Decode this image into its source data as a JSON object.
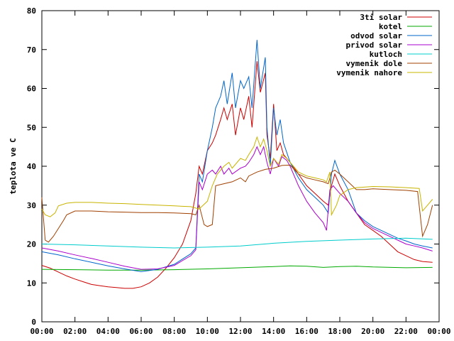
{
  "chart_data": {
    "type": "line",
    "ylabel": "teplota ve C",
    "xlabel": "",
    "ylim": [
      0,
      80
    ],
    "xlim": [
      0,
      24
    ],
    "x_ticks": [
      "00:00",
      "02:00",
      "04:00",
      "06:00",
      "08:00",
      "10:00",
      "12:00",
      "14:00",
      "16:00",
      "18:00",
      "20:00",
      "22:00",
      "00:00"
    ],
    "y_ticks": [
      0,
      10,
      20,
      30,
      40,
      50,
      60,
      70,
      80
    ],
    "legend_position": "top-right",
    "grid": false,
    "series": [
      {
        "name": "3ti solar",
        "color": "#cc0000",
        "points": [
          [
            0,
            14.5
          ],
          [
            0.5,
            13.8
          ],
          [
            1,
            12.8
          ],
          [
            1.5,
            11.8
          ],
          [
            2,
            11
          ],
          [
            2.5,
            10.3
          ],
          [
            3,
            9.6
          ],
          [
            3.5,
            9.3
          ],
          [
            4,
            9.0
          ],
          [
            4.5,
            8.8
          ],
          [
            5,
            8.6
          ],
          [
            5.5,
            8.6
          ],
          [
            6,
            9
          ],
          [
            6.5,
            10
          ],
          [
            7,
            11.5
          ],
          [
            7.5,
            13.8
          ],
          [
            8,
            16.5
          ],
          [
            8.5,
            20
          ],
          [
            9,
            26
          ],
          [
            9.3,
            33
          ],
          [
            9.5,
            40
          ],
          [
            9.7,
            38
          ],
          [
            10,
            44
          ],
          [
            10.3,
            46
          ],
          [
            10.5,
            48
          ],
          [
            10.8,
            52
          ],
          [
            11,
            55
          ],
          [
            11.2,
            52
          ],
          [
            11.5,
            56
          ],
          [
            11.7,
            48
          ],
          [
            12,
            55
          ],
          [
            12.2,
            52
          ],
          [
            12.5,
            58
          ],
          [
            12.7,
            50
          ],
          [
            13,
            67
          ],
          [
            13.2,
            59
          ],
          [
            13.5,
            64
          ],
          [
            13.6,
            48
          ],
          [
            13.8,
            42
          ],
          [
            14,
            56
          ],
          [
            14.2,
            44
          ],
          [
            14.4,
            46
          ],
          [
            14.6,
            43
          ],
          [
            15,
            41
          ],
          [
            15.5,
            38
          ],
          [
            16,
            35
          ],
          [
            16.5,
            33
          ],
          [
            17,
            31
          ],
          [
            17.3,
            30
          ],
          [
            17.5,
            35
          ],
          [
            17.7,
            38
          ],
          [
            18,
            35
          ],
          [
            18.5,
            31
          ],
          [
            19,
            28
          ],
          [
            19.5,
            25
          ],
          [
            20,
            23.5
          ],
          [
            20.5,
            22
          ],
          [
            21,
            20
          ],
          [
            21.5,
            18
          ],
          [
            22,
            17
          ],
          [
            22.5,
            16
          ],
          [
            23,
            15.5
          ],
          [
            23.6,
            15.3
          ]
        ]
      },
      {
        "name": "kotel",
        "color": "#00aa00",
        "points": [
          [
            0,
            13.5
          ],
          [
            2,
            13.4
          ],
          [
            4,
            13.3
          ],
          [
            6,
            13.3
          ],
          [
            8,
            13.4
          ],
          [
            10,
            13.6
          ],
          [
            12,
            13.9
          ],
          [
            14,
            14.2
          ],
          [
            15,
            14.4
          ],
          [
            16,
            14.3
          ],
          [
            17,
            14.0
          ],
          [
            18,
            14.2
          ],
          [
            19,
            14.3
          ],
          [
            20,
            14.1
          ],
          [
            22,
            13.9
          ],
          [
            23.6,
            14.0
          ]
        ]
      },
      {
        "name": "odvod solar",
        "color": "#0066cc",
        "points": [
          [
            0,
            18
          ],
          [
            1,
            17.2
          ],
          [
            2,
            16.2
          ],
          [
            3,
            15.3
          ],
          [
            4,
            14.4
          ],
          [
            5,
            13.6
          ],
          [
            6,
            12.9
          ],
          [
            7,
            13.5
          ],
          [
            8,
            14.8
          ],
          [
            9,
            17.5
          ],
          [
            9.3,
            19
          ],
          [
            9.5,
            38
          ],
          [
            9.7,
            36
          ],
          [
            10,
            44
          ],
          [
            10.3,
            50
          ],
          [
            10.5,
            55
          ],
          [
            10.8,
            58
          ],
          [
            11,
            62
          ],
          [
            11.2,
            56
          ],
          [
            11.5,
            64
          ],
          [
            11.7,
            55
          ],
          [
            12,
            62
          ],
          [
            12.2,
            60
          ],
          [
            12.5,
            63
          ],
          [
            12.7,
            55
          ],
          [
            13,
            72.5
          ],
          [
            13.2,
            60
          ],
          [
            13.5,
            68
          ],
          [
            13.6,
            50
          ],
          [
            13.8,
            40
          ],
          [
            14,
            55
          ],
          [
            14.2,
            48
          ],
          [
            14.4,
            52
          ],
          [
            14.6,
            46
          ],
          [
            15,
            41
          ],
          [
            15.5,
            37
          ],
          [
            16,
            34
          ],
          [
            16.5,
            32
          ],
          [
            17,
            30
          ],
          [
            17.3,
            28
          ],
          [
            17.5,
            38
          ],
          [
            17.7,
            41.5
          ],
          [
            18,
            38
          ],
          [
            18.5,
            34
          ],
          [
            19,
            28
          ],
          [
            19.5,
            26
          ],
          [
            20,
            24.5
          ],
          [
            20.5,
            23.5
          ],
          [
            21,
            22.5
          ],
          [
            21.5,
            21.5
          ],
          [
            22,
            20.8
          ],
          [
            22.5,
            20
          ],
          [
            23,
            19.5
          ],
          [
            23.6,
            19
          ]
        ]
      },
      {
        "name": "privod solar",
        "color": "#aa00cc",
        "points": [
          [
            0,
            19
          ],
          [
            1,
            18.2
          ],
          [
            2,
            17.2
          ],
          [
            3,
            16.3
          ],
          [
            4,
            15.3
          ],
          [
            5,
            14.3
          ],
          [
            6,
            13.5
          ],
          [
            7,
            13.6
          ],
          [
            8,
            14.5
          ],
          [
            9,
            17
          ],
          [
            9.3,
            18.5
          ],
          [
            9.5,
            36
          ],
          [
            9.7,
            34
          ],
          [
            10,
            38
          ],
          [
            10.3,
            39
          ],
          [
            10.5,
            38
          ],
          [
            10.8,
            40
          ],
          [
            11,
            38
          ],
          [
            11.3,
            39.5
          ],
          [
            11.5,
            38
          ],
          [
            12,
            39.5
          ],
          [
            12.3,
            40
          ],
          [
            12.5,
            41
          ],
          [
            12.8,
            43
          ],
          [
            13,
            45
          ],
          [
            13.2,
            43
          ],
          [
            13.4,
            45
          ],
          [
            13.6,
            41
          ],
          [
            13.8,
            38
          ],
          [
            14,
            42
          ],
          [
            14.3,
            40
          ],
          [
            14.5,
            42.5
          ],
          [
            14.8,
            41.5
          ],
          [
            15,
            40
          ],
          [
            15.5,
            35
          ],
          [
            16,
            31
          ],
          [
            16.5,
            28
          ],
          [
            17,
            25.5
          ],
          [
            17.2,
            23.5
          ],
          [
            17.4,
            34
          ],
          [
            17.6,
            35
          ],
          [
            18,
            33
          ],
          [
            18.5,
            31
          ],
          [
            19,
            28
          ],
          [
            19.5,
            25.5
          ],
          [
            20,
            24
          ],
          [
            20.5,
            23
          ],
          [
            21,
            22
          ],
          [
            21.5,
            21
          ],
          [
            22,
            20
          ],
          [
            22.5,
            19.5
          ],
          [
            23,
            19
          ],
          [
            23.6,
            18.2
          ]
        ]
      },
      {
        "name": "kutloch",
        "color": "#00cccc",
        "points": [
          [
            0,
            20
          ],
          [
            2,
            19.8
          ],
          [
            4,
            19.5
          ],
          [
            6,
            19.2
          ],
          [
            8,
            19
          ],
          [
            10,
            19.2
          ],
          [
            12,
            19.5
          ],
          [
            14,
            20.2
          ],
          [
            16,
            20.7
          ],
          [
            18,
            21.0
          ],
          [
            20,
            21.3
          ],
          [
            22,
            21.5
          ],
          [
            23.6,
            21.2
          ]
        ]
      },
      {
        "name": "vymenik dole",
        "color": "#a04000",
        "points": [
          [
            0,
            32
          ],
          [
            0.2,
            21
          ],
          [
            0.4,
            20.5
          ],
          [
            0.7,
            22
          ],
          [
            1,
            24
          ],
          [
            1.3,
            26
          ],
          [
            1.5,
            27.5
          ],
          [
            2,
            28.5
          ],
          [
            3,
            28.5
          ],
          [
            4,
            28.3
          ],
          [
            5,
            28.2
          ],
          [
            6,
            28.1
          ],
          [
            7,
            28.1
          ],
          [
            8,
            28.0
          ],
          [
            9,
            27.8
          ],
          [
            9.3,
            27.5
          ],
          [
            9.5,
            30
          ],
          [
            9.8,
            25
          ],
          [
            10,
            24.5
          ],
          [
            10.3,
            25
          ],
          [
            10.5,
            35
          ],
          [
            11,
            35.5
          ],
          [
            11.5,
            36
          ],
          [
            12,
            37
          ],
          [
            12.3,
            36
          ],
          [
            12.5,
            37.5
          ],
          [
            13,
            38.5
          ],
          [
            13.5,
            39.2
          ],
          [
            14,
            39.5
          ],
          [
            14.5,
            40.2
          ],
          [
            15,
            40.3
          ],
          [
            15.5,
            38
          ],
          [
            16,
            37
          ],
          [
            16.5,
            36.5
          ],
          [
            17,
            36
          ],
          [
            17.3,
            35.5
          ],
          [
            17.5,
            38.5
          ],
          [
            17.7,
            39
          ],
          [
            18,
            38
          ],
          [
            18.5,
            36
          ],
          [
            19,
            34
          ],
          [
            19.5,
            34
          ],
          [
            20,
            34.2
          ],
          [
            21,
            34
          ],
          [
            22,
            33.8
          ],
          [
            22.7,
            33.5
          ],
          [
            23,
            22
          ],
          [
            23.3,
            25
          ],
          [
            23.6,
            30
          ]
        ]
      },
      {
        "name": "vymenik nahore",
        "color": "#c8b400",
        "points": [
          [
            0,
            29
          ],
          [
            0.2,
            27.5
          ],
          [
            0.5,
            27
          ],
          [
            0.8,
            28
          ],
          [
            1,
            29.8
          ],
          [
            1.5,
            30.5
          ],
          [
            2,
            30.7
          ],
          [
            3,
            30.7
          ],
          [
            4,
            30.5
          ],
          [
            5,
            30.4
          ],
          [
            6,
            30.2
          ],
          [
            7,
            30.0
          ],
          [
            8,
            29.8
          ],
          [
            9,
            29.6
          ],
          [
            9.5,
            29
          ],
          [
            10,
            31
          ],
          [
            10.3,
            35
          ],
          [
            10.6,
            38
          ],
          [
            11,
            40
          ],
          [
            11.3,
            41
          ],
          [
            11.5,
            39.5
          ],
          [
            12,
            42
          ],
          [
            12.3,
            41.5
          ],
          [
            12.5,
            43
          ],
          [
            12.8,
            45
          ],
          [
            13,
            47.5
          ],
          [
            13.2,
            45
          ],
          [
            13.4,
            47
          ],
          [
            13.6,
            44
          ],
          [
            13.8,
            40
          ],
          [
            14,
            42
          ],
          [
            14.3,
            40.5
          ],
          [
            14.5,
            43
          ],
          [
            14.8,
            42
          ],
          [
            15,
            41
          ],
          [
            15.5,
            38.5
          ],
          [
            16,
            37.5
          ],
          [
            16.5,
            37
          ],
          [
            17,
            36.5
          ],
          [
            17.2,
            36
          ],
          [
            17.4,
            38.5
          ],
          [
            17.5,
            27.5
          ],
          [
            17.8,
            30
          ],
          [
            18,
            32.5
          ],
          [
            18.5,
            34
          ],
          [
            19,
            34.5
          ],
          [
            20,
            34.8
          ],
          [
            21,
            34.7
          ],
          [
            22,
            34.5
          ],
          [
            22.8,
            34.3
          ],
          [
            23,
            28.5
          ],
          [
            23.3,
            30
          ],
          [
            23.6,
            31.5
          ]
        ]
      }
    ]
  }
}
